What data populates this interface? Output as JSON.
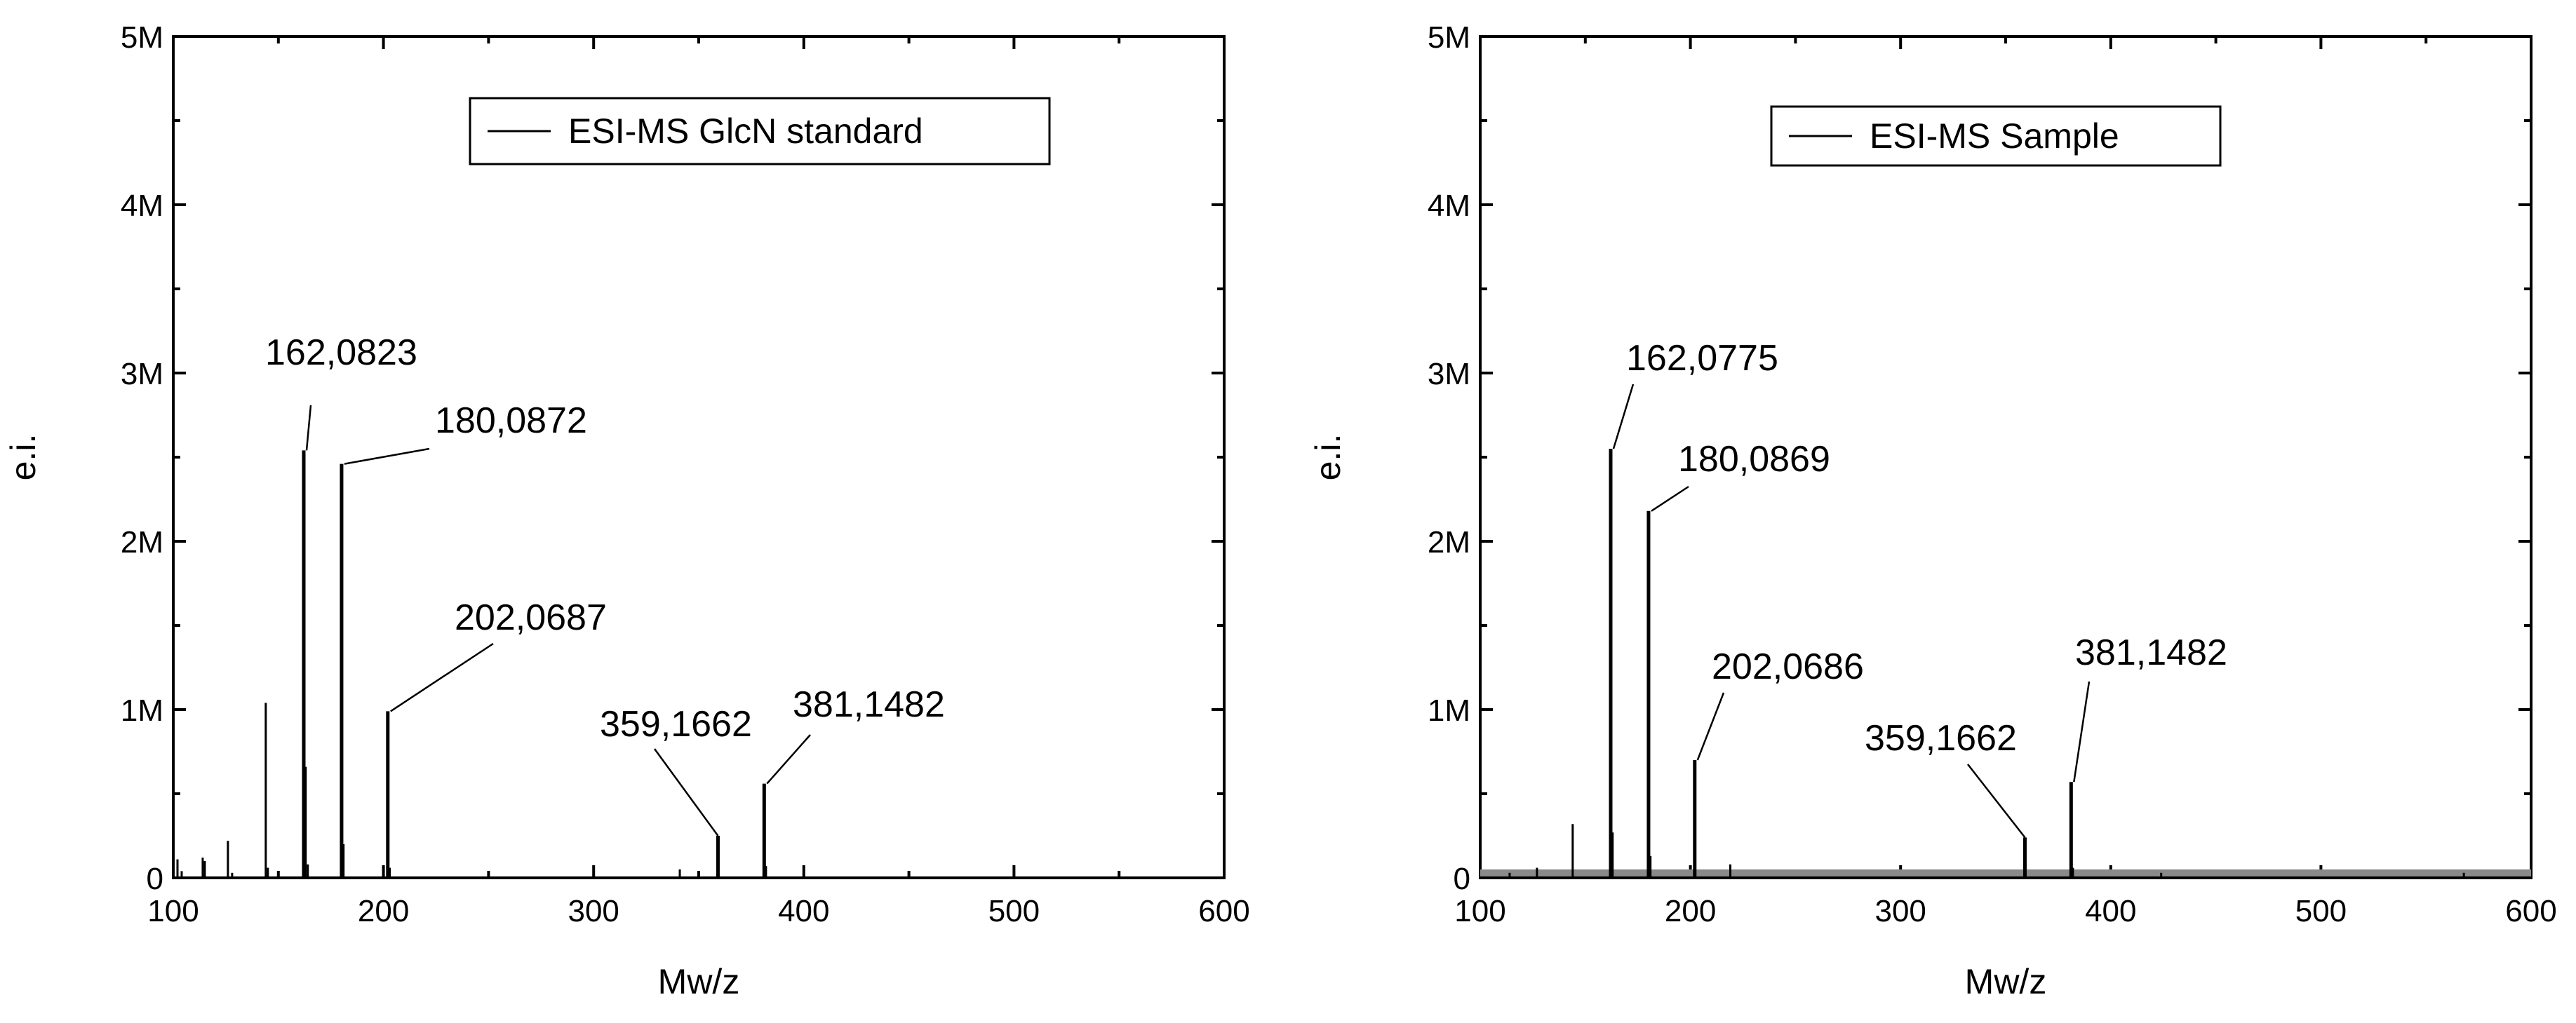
{
  "chart_data": [
    {
      "type": "bar",
      "xlabel": "Mw/z",
      "ylabel": "e.i.",
      "xlim": [
        100,
        600
      ],
      "ylim": [
        0,
        5000000
      ],
      "xticks": [
        "100",
        "200",
        "300",
        "400",
        "500",
        "600"
      ],
      "yticks": [
        "0",
        "1M",
        "2M",
        "3M",
        "4M",
        "5M"
      ],
      "legend": {
        "label": "ESI-MS GlcN standard",
        "placement": "top-center"
      },
      "grid": false,
      "baseline_band": false,
      "peaks": [
        {
          "x": 102,
          "y": 110000
        },
        {
          "x": 104,
          "y": 40000
        },
        {
          "x": 114,
          "y": 120000
        },
        {
          "x": 115,
          "y": 100000
        },
        {
          "x": 126,
          "y": 220000
        },
        {
          "x": 128,
          "y": 30000
        },
        {
          "x": 144,
          "y": 1040000
        },
        {
          "x": 145,
          "y": 60000
        },
        {
          "x": 162.0823,
          "y": 2540000,
          "label": "162,0823"
        },
        {
          "x": 163,
          "y": 660000
        },
        {
          "x": 164,
          "y": 80000
        },
        {
          "x": 180.0872,
          "y": 2460000,
          "label": "180,0872"
        },
        {
          "x": 181,
          "y": 200000
        },
        {
          "x": 202.0687,
          "y": 990000,
          "label": "202,0687"
        },
        {
          "x": 203,
          "y": 60000
        },
        {
          "x": 341,
          "y": 50000
        },
        {
          "x": 359.1662,
          "y": 250000,
          "label": "359,1662"
        },
        {
          "x": 381.1482,
          "y": 560000,
          "label": "381,1482"
        },
        {
          "x": 382,
          "y": 70000
        }
      ],
      "annotations": [
        {
          "text": "162,0823",
          "peak_x": 162.0823
        },
        {
          "text": "180,0872",
          "peak_x": 180.0872
        },
        {
          "text": "202,0687",
          "peak_x": 202.0687
        },
        {
          "text": "359,1662",
          "peak_x": 359.1662
        },
        {
          "text": "381,1482",
          "peak_x": 381.1482
        }
      ]
    },
    {
      "type": "bar",
      "xlabel": "Mw/z",
      "ylabel": "e.i.",
      "xlim": [
        100,
        600
      ],
      "ylim": [
        0,
        5000000
      ],
      "xticks": [
        "100",
        "200",
        "300",
        "400",
        "500",
        "600"
      ],
      "yticks": [
        "0",
        "1M",
        "2M",
        "3M",
        "4M",
        "5M"
      ],
      "legend": {
        "label": "ESI-MS Sample",
        "placement": "top-center"
      },
      "grid": false,
      "baseline_band": true,
      "peaks": [
        {
          "x": 114,
          "y": 30000
        },
        {
          "x": 127,
          "y": 60000
        },
        {
          "x": 144,
          "y": 320000
        },
        {
          "x": 162.0775,
          "y": 2550000,
          "label": "162,0775"
        },
        {
          "x": 163,
          "y": 270000
        },
        {
          "x": 180.0869,
          "y": 2180000,
          "label": "180,0869"
        },
        {
          "x": 181,
          "y": 130000
        },
        {
          "x": 202.0686,
          "y": 700000,
          "label": "202,0686"
        },
        {
          "x": 219,
          "y": 80000
        },
        {
          "x": 359.1662,
          "y": 240000,
          "label": "359,1662"
        },
        {
          "x": 381.1482,
          "y": 570000,
          "label": "381,1482"
        },
        {
          "x": 382,
          "y": 60000
        },
        {
          "x": 424,
          "y": 30000
        },
        {
          "x": 568,
          "y": 30000
        }
      ],
      "annotations": [
        {
          "text": "162,0775",
          "peak_x": 162.0775
        },
        {
          "text": "180,0869",
          "peak_x": 180.0869
        },
        {
          "text": "202,0686",
          "peak_x": 202.0686
        },
        {
          "text": "359,1662",
          "peak_x": 359.1662
        },
        {
          "text": "381,1482",
          "peak_x": 381.1482
        }
      ]
    }
  ]
}
